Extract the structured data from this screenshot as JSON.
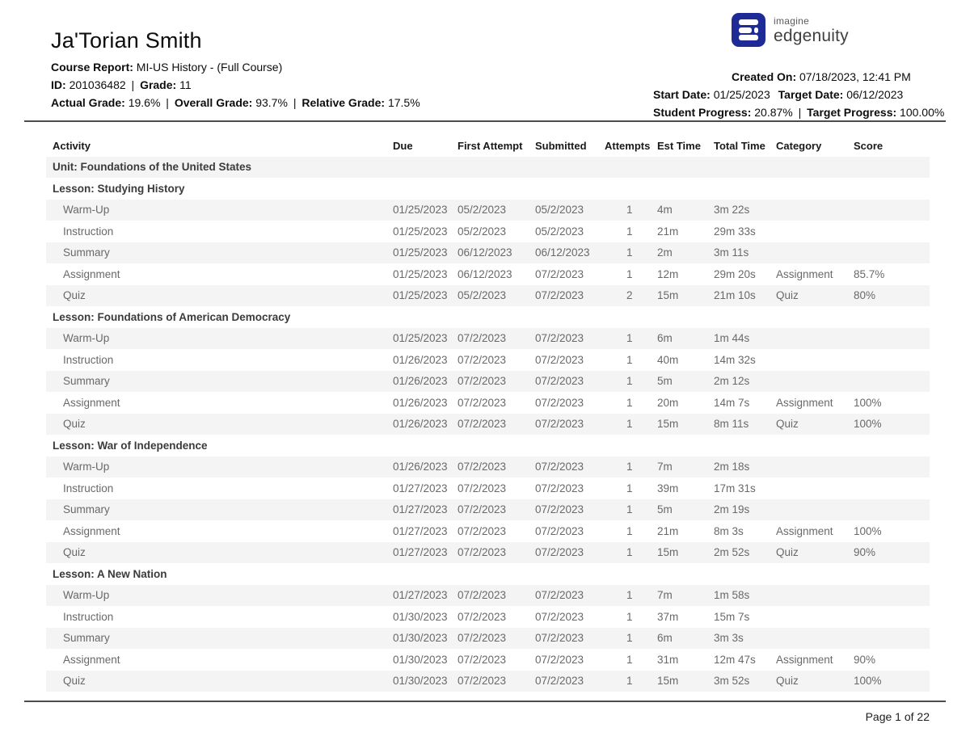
{
  "header": {
    "student_name": "Ja'Torian Smith",
    "course_report_label": "Course Report:",
    "course_report_value": "MI-US History - (Full Course)",
    "id_label": "ID:",
    "id_value": "201036482",
    "grade_label": "Grade:",
    "grade_value": "11",
    "actual_grade_label": "Actual Grade:",
    "actual_grade_value": "19.6%",
    "overall_grade_label": "Overall Grade:",
    "overall_grade_value": "93.7%",
    "relative_grade_label": "Relative Grade:",
    "relative_grade_value": "17.5%",
    "pipe": "|",
    "logo": {
      "icon_name": "imagine-learning-e-icon",
      "icon_color": "#1e2a96",
      "brand_top": "imagine",
      "brand_bottom": "edgenuity"
    },
    "created_on_label": "Created On:",
    "created_on_value": "07/18/2023, 12:41 PM",
    "start_date_label": "Start Date:",
    "start_date_value": "01/25/2023",
    "target_date_label": "Target Date:",
    "target_date_value": "06/12/2023",
    "student_progress_label": "Student Progress:",
    "student_progress_value": "20.87%",
    "target_progress_label": "Target Progress:",
    "target_progress_value": "100.00%"
  },
  "table": {
    "columns": [
      "Activity",
      "Due",
      "First Attempt",
      "Submitted",
      "Attempts",
      "Est Time",
      "Total Time",
      "Category",
      "Score"
    ],
    "stripe_color": "#f4f4f4",
    "rows": [
      {
        "type": "unit",
        "label": "Unit: Foundations of the United States"
      },
      {
        "type": "lesson",
        "label": "Lesson: Studying History"
      },
      {
        "type": "activity",
        "activity": "Warm-Up",
        "due": "01/25/2023",
        "first_attempt": "05/2/2023",
        "submitted": "05/2/2023",
        "attempts": "1",
        "est_time": "4m",
        "total_time": "3m 22s",
        "category": "",
        "score": ""
      },
      {
        "type": "activity",
        "activity": "Instruction",
        "due": "01/25/2023",
        "first_attempt": "05/2/2023",
        "submitted": "05/2/2023",
        "attempts": "1",
        "est_time": "21m",
        "total_time": "29m 33s",
        "category": "",
        "score": ""
      },
      {
        "type": "activity",
        "activity": "Summary",
        "due": "01/25/2023",
        "first_attempt": "06/12/2023",
        "submitted": "06/12/2023",
        "attempts": "1",
        "est_time": "2m",
        "total_time": "3m 11s",
        "category": "",
        "score": ""
      },
      {
        "type": "activity",
        "activity": "Assignment",
        "due": "01/25/2023",
        "first_attempt": "06/12/2023",
        "submitted": "07/2/2023",
        "attempts": "1",
        "est_time": "12m",
        "total_time": "29m 20s",
        "category": "Assignment",
        "score": "85.7%"
      },
      {
        "type": "activity",
        "activity": "Quiz",
        "due": "01/25/2023",
        "first_attempt": "05/2/2023",
        "submitted": "07/2/2023",
        "attempts": "2",
        "est_time": "15m",
        "total_time": "21m 10s",
        "category": "Quiz",
        "score": "80%"
      },
      {
        "type": "lesson",
        "label": "Lesson: Foundations of American Democracy"
      },
      {
        "type": "activity",
        "activity": "Warm-Up",
        "due": "01/25/2023",
        "first_attempt": "07/2/2023",
        "submitted": "07/2/2023",
        "attempts": "1",
        "est_time": "6m",
        "total_time": "1m 44s",
        "category": "",
        "score": ""
      },
      {
        "type": "activity",
        "activity": "Instruction",
        "due": "01/26/2023",
        "first_attempt": "07/2/2023",
        "submitted": "07/2/2023",
        "attempts": "1",
        "est_time": "40m",
        "total_time": "14m 32s",
        "category": "",
        "score": ""
      },
      {
        "type": "activity",
        "activity": "Summary",
        "due": "01/26/2023",
        "first_attempt": "07/2/2023",
        "submitted": "07/2/2023",
        "attempts": "1",
        "est_time": "5m",
        "total_time": "2m 12s",
        "category": "",
        "score": ""
      },
      {
        "type": "activity",
        "activity": "Assignment",
        "due": "01/26/2023",
        "first_attempt": "07/2/2023",
        "submitted": "07/2/2023",
        "attempts": "1",
        "est_time": "20m",
        "total_time": "14m 7s",
        "category": "Assignment",
        "score": "100%"
      },
      {
        "type": "activity",
        "activity": "Quiz",
        "due": "01/26/2023",
        "first_attempt": "07/2/2023",
        "submitted": "07/2/2023",
        "attempts": "1",
        "est_time": "15m",
        "total_time": "8m 11s",
        "category": "Quiz",
        "score": "100%"
      },
      {
        "type": "lesson",
        "label": "Lesson: War of Independence"
      },
      {
        "type": "activity",
        "activity": "Warm-Up",
        "due": "01/26/2023",
        "first_attempt": "07/2/2023",
        "submitted": "07/2/2023",
        "attempts": "1",
        "est_time": "7m",
        "total_time": "2m 18s",
        "category": "",
        "score": ""
      },
      {
        "type": "activity",
        "activity": "Instruction",
        "due": "01/27/2023",
        "first_attempt": "07/2/2023",
        "submitted": "07/2/2023",
        "attempts": "1",
        "est_time": "39m",
        "total_time": "17m 31s",
        "category": "",
        "score": ""
      },
      {
        "type": "activity",
        "activity": "Summary",
        "due": "01/27/2023",
        "first_attempt": "07/2/2023",
        "submitted": "07/2/2023",
        "attempts": "1",
        "est_time": "5m",
        "total_time": "2m 19s",
        "category": "",
        "score": ""
      },
      {
        "type": "activity",
        "activity": "Assignment",
        "due": "01/27/2023",
        "first_attempt": "07/2/2023",
        "submitted": "07/2/2023",
        "attempts": "1",
        "est_time": "21m",
        "total_time": "8m 3s",
        "category": "Assignment",
        "score": "100%"
      },
      {
        "type": "activity",
        "activity": "Quiz",
        "due": "01/27/2023",
        "first_attempt": "07/2/2023",
        "submitted": "07/2/2023",
        "attempts": "1",
        "est_time": "15m",
        "total_time": "2m 52s",
        "category": "Quiz",
        "score": "90%"
      },
      {
        "type": "lesson",
        "label": "Lesson: A New Nation"
      },
      {
        "type": "activity",
        "activity": "Warm-Up",
        "due": "01/27/2023",
        "first_attempt": "07/2/2023",
        "submitted": "07/2/2023",
        "attempts": "1",
        "est_time": "7m",
        "total_time": "1m 58s",
        "category": "",
        "score": ""
      },
      {
        "type": "activity",
        "activity": "Instruction",
        "due": "01/30/2023",
        "first_attempt": "07/2/2023",
        "submitted": "07/2/2023",
        "attempts": "1",
        "est_time": "37m",
        "total_time": "15m 7s",
        "category": "",
        "score": ""
      },
      {
        "type": "activity",
        "activity": "Summary",
        "due": "01/30/2023",
        "first_attempt": "07/2/2023",
        "submitted": "07/2/2023",
        "attempts": "1",
        "est_time": "6m",
        "total_time": "3m 3s",
        "category": "",
        "score": ""
      },
      {
        "type": "activity",
        "activity": "Assignment",
        "due": "01/30/2023",
        "first_attempt": "07/2/2023",
        "submitted": "07/2/2023",
        "attempts": "1",
        "est_time": "31m",
        "total_time": "12m 47s",
        "category": "Assignment",
        "score": "90%"
      },
      {
        "type": "activity",
        "activity": "Quiz",
        "due": "01/30/2023",
        "first_attempt": "07/2/2023",
        "submitted": "07/2/2023",
        "attempts": "1",
        "est_time": "15m",
        "total_time": "3m 52s",
        "category": "Quiz",
        "score": "100%"
      }
    ]
  },
  "footer": {
    "page_text": "Page 1 of 22"
  }
}
